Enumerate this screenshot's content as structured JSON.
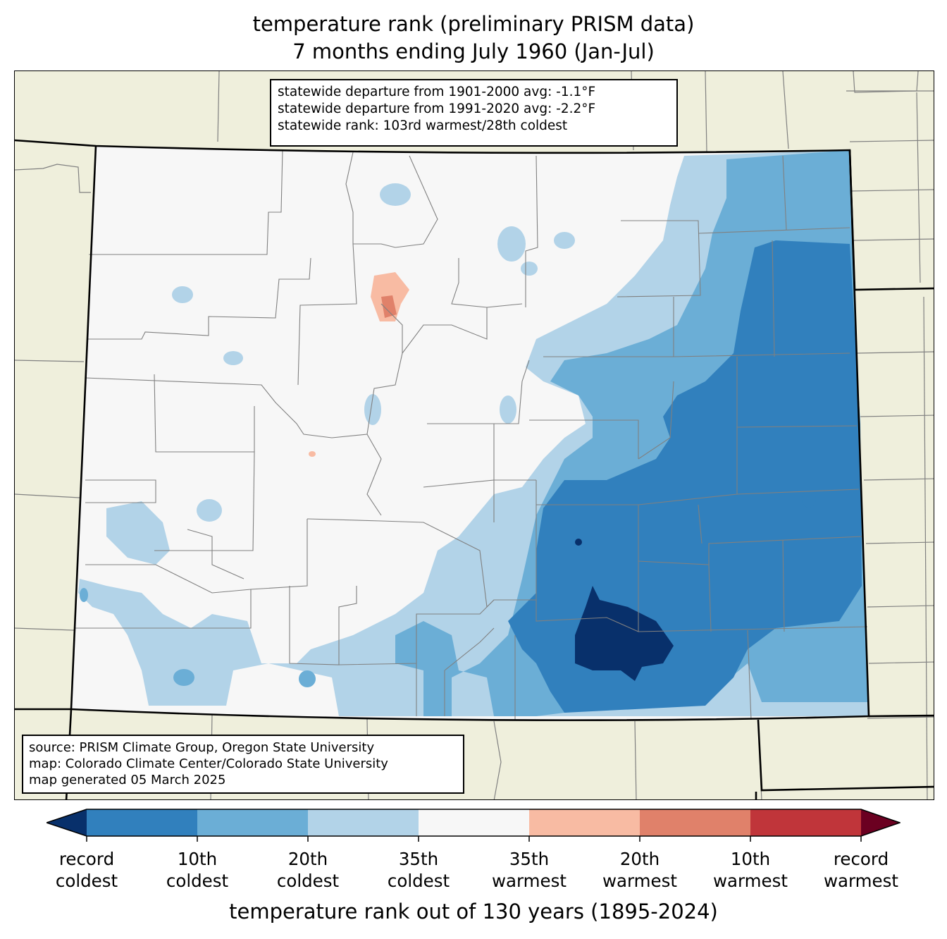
{
  "title": {
    "line1": "temperature rank (preliminary PRISM data)",
    "line2": "7 months ending July 1960 (Jan-Jul)"
  },
  "stats": {
    "line1": "statewide departure from 1901-2000 avg: -1.1°F",
    "line2": "statewide departure from 1991-2020 avg: -2.2°F",
    "line3": "statewide rank: 103rd warmest/28th coldest"
  },
  "source": {
    "line1": "source: PRISM Climate Group, Oregon State University",
    "line2": "map: Colorado Climate Center/Colorado State University",
    "line3": "map generated 05 March 2025"
  },
  "colorbar": {
    "title": "temperature rank out of 130 years (1895-2024)",
    "ticks": [
      {
        "line1": "record",
        "line2": "coldest"
      },
      {
        "line1": "10th",
        "line2": "coldest"
      },
      {
        "line1": "20th",
        "line2": "coldest"
      },
      {
        "line1": "35th",
        "line2": "coldest"
      },
      {
        "line1": "35th",
        "line2": "warmest"
      },
      {
        "line1": "20th",
        "line2": "warmest"
      },
      {
        "line1": "10th",
        "line2": "warmest"
      },
      {
        "line1": "record",
        "line2": "warmest"
      }
    ],
    "colors": {
      "below_record_coldest": "#08306b",
      "record_to_10th_coldest": "#3180bd",
      "10th_to_20th_coldest": "#6baed6",
      "20th_to_35th_coldest": "#b2d3e8",
      "near_normal": "#f7f7f7",
      "35th_to_20th_warmest": "#f8bba3",
      "20th_to_10th_warmest": "#e0816a",
      "10th_to_record_warmest": "#c0353a",
      "above_record_warmest": "#6b0021"
    }
  },
  "map_colors": {
    "background_states": "#efefdc",
    "county_lines": "#808080",
    "state_lines": "#000000"
  }
}
